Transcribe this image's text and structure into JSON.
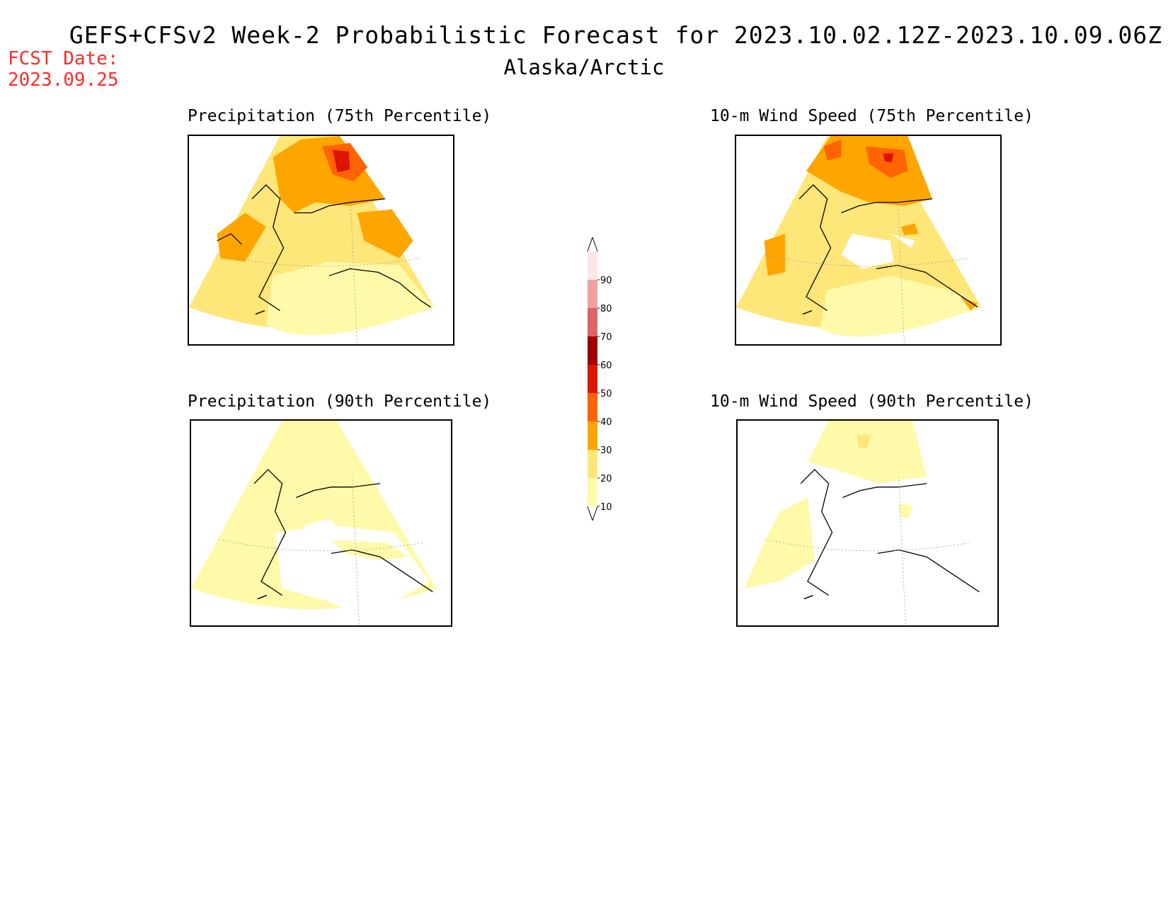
{
  "header": {
    "title": "GEFS+CFSv2 Week-2 Probabilistic Forecast for 2023.10.02.12Z-2023.10.09.06Z",
    "subtitle": "Alaska/Arctic",
    "fcst_label": "FCST Date:",
    "fcst_date": "2023.09.25"
  },
  "panels": [
    {
      "title": "Precipitation (75th Percentile)"
    },
    {
      "title": "10-m Wind Speed (75th Percentile)"
    },
    {
      "title": "Precipitation (90th Percentile)"
    },
    {
      "title": "10-m Wind Speed (90th Percentile)"
    }
  ],
  "colorbar": {
    "levels": [
      "10",
      "20",
      "30",
      "40",
      "50",
      "60",
      "70",
      "80",
      "90"
    ],
    "colors": [
      "#fffaaa",
      "#ffe678",
      "#ffa500",
      "#ff6400",
      "#dc1400",
      "#a00000",
      "#dc6464",
      "#f0a0a0",
      "#fde6e6"
    ]
  }
}
